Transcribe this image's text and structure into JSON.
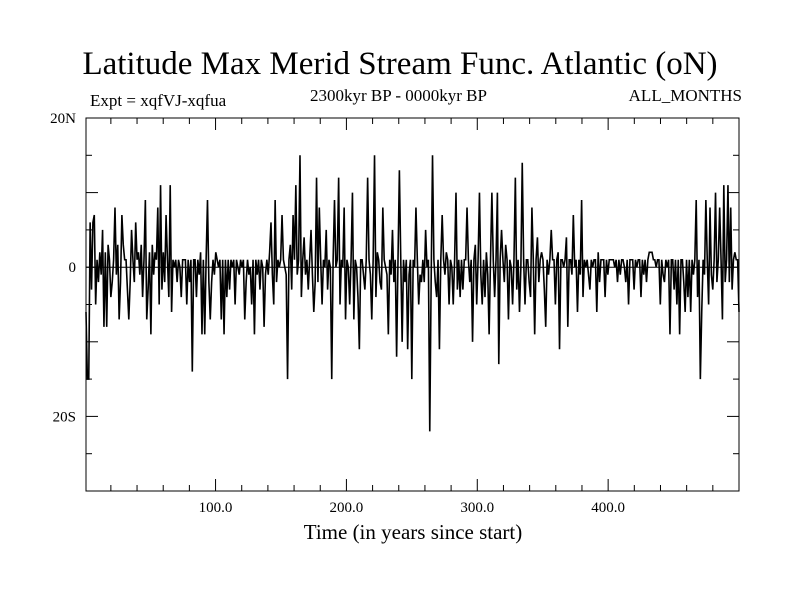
{
  "chart_data": {
    "type": "line",
    "title": "Latitude Max Merid Stream Func. Atlantic (oN)",
    "subtitle_left": "Expt = xqfVJ-xqfua",
    "subtitle_center": "2300kyr BP - 0000kyr BP",
    "subtitle_right": "ALL_MONTHS",
    "xlabel": "Time (in years since start)",
    "ylabel": "",
    "xlim": [
      1,
      500
    ],
    "ylim": [
      -30,
      20
    ],
    "x_ticks": [
      {
        "value": 100,
        "label": "100.0"
      },
      {
        "value": 200,
        "label": "200.0"
      },
      {
        "value": 300,
        "label": "300.0"
      },
      {
        "value": 400,
        "label": "400.0"
      }
    ],
    "y_ticks": [
      {
        "value": 20,
        "label": "20N"
      },
      {
        "value": 0,
        "label": "0"
      },
      {
        "value": -20,
        "label": "20S"
      }
    ],
    "reference_line": 0,
    "grid": false,
    "series": [
      {
        "values": [
          -6,
          -15,
          -15,
          6,
          -3,
          6,
          7,
          -5,
          1,
          -2,
          2,
          -1,
          5,
          -8,
          2,
          -8,
          3,
          1,
          -4,
          -2,
          1,
          8,
          -1,
          3,
          -7,
          -2,
          7,
          3,
          1,
          1,
          -3,
          -7,
          -2,
          5,
          1,
          -2,
          6,
          1,
          2,
          -1,
          3,
          -4,
          1,
          9,
          -7,
          -3,
          2,
          -9,
          3,
          -1,
          2,
          1,
          8,
          -5,
          11,
          -3,
          2,
          -2,
          7,
          1,
          -4,
          11,
          -6,
          1,
          0,
          1,
          -2,
          1,
          0,
          -4,
          1,
          1,
          1,
          -5,
          1,
          -2,
          1,
          -14,
          1,
          1,
          -4,
          1,
          -1,
          2,
          -9,
          1,
          -9,
          1,
          9,
          -2,
          -7,
          -2,
          1,
          -1,
          2,
          1,
          0,
          1,
          -7,
          1,
          -9,
          1,
          -4,
          1,
          -3,
          1,
          0,
          1,
          -5,
          1,
          0,
          -1,
          1,
          0,
          1,
          -7,
          -2,
          1,
          -1,
          0,
          -5,
          1,
          -9,
          1,
          -1,
          1,
          -3,
          1,
          0,
          -8,
          -1,
          1,
          -1,
          2,
          6,
          -1,
          -5,
          9,
          -2,
          1,
          0,
          1,
          7,
          1,
          0,
          -1,
          -15,
          1,
          3,
          -3,
          7,
          1,
          11,
          -1,
          1,
          15,
          -4,
          1,
          4,
          -1,
          1,
          -3,
          1,
          5,
          -1,
          -6,
          -2,
          12,
          -2,
          8,
          1,
          -5,
          1,
          0,
          5,
          -3,
          1,
          0,
          -15,
          1,
          9,
          0,
          1,
          12,
          -5,
          1,
          0,
          8,
          -7,
          1,
          0,
          -5,
          1,
          10,
          -7,
          1,
          0,
          -4,
          -11,
          1,
          1,
          -1,
          -3,
          1,
          12,
          1,
          -1,
          -7,
          1,
          15,
          -4,
          2,
          1,
          -2,
          -3,
          8,
          1,
          0,
          -1,
          -9,
          1,
          -1,
          5,
          -2,
          1,
          -12,
          1,
          13,
          1,
          -10,
          1,
          -2,
          1,
          -11,
          -1,
          1,
          -15,
          1,
          0,
          8,
          1,
          -5,
          -1,
          -2,
          1,
          -2,
          5,
          0,
          1,
          -22,
          -2,
          15,
          1,
          -2,
          -4,
          1,
          -11,
          1,
          7,
          1,
          -1,
          2,
          1,
          -5,
          1,
          0,
          -5,
          1,
          10,
          -3,
          1,
          -4,
          1,
          -3,
          1,
          1,
          8,
          1,
          -2,
          1,
          -10,
          1,
          3,
          -5,
          1,
          10,
          -1,
          -5,
          1,
          -4,
          2,
          -1,
          -9,
          1,
          10,
          1,
          -4,
          1,
          10,
          -13,
          1,
          5,
          1,
          -2,
          3,
          1,
          -7,
          1,
          0,
          -5,
          1,
          12,
          -3,
          1,
          -6,
          0,
          14,
          1,
          -5,
          1,
          1,
          -2,
          -4,
          8,
          1,
          -9,
          1,
          4,
          -2,
          1,
          2,
          1,
          -3,
          -8,
          1,
          -1,
          1,
          5,
          1,
          1,
          -5,
          1,
          2,
          -11,
          1,
          1,
          0,
          1,
          4,
          -8,
          1,
          1,
          -1,
          7,
          0,
          1,
          -6,
          1,
          -1,
          9,
          -4,
          1,
          0,
          1,
          -1,
          -3,
          1,
          0,
          1,
          1,
          -6,
          2,
          -2,
          1,
          1,
          1,
          -4,
          1,
          -1,
          1,
          1,
          1,
          1,
          0,
          1,
          -2,
          1,
          -1,
          1,
          1,
          0,
          -2,
          1,
          -5,
          1,
          1,
          1,
          -3,
          1,
          0,
          1,
          1,
          -4,
          1,
          -1,
          1,
          -2,
          1,
          2,
          2,
          2,
          1,
          1,
          0,
          1,
          1,
          -5,
          1,
          -1,
          -2,
          1,
          0,
          1,
          -9,
          1,
          1,
          -3,
          1,
          -5,
          1,
          -9,
          1,
          1,
          -2,
          -6,
          1,
          -4,
          1,
          -6,
          1,
          -1,
          1,
          9,
          -4,
          1,
          -15,
          -6,
          1,
          -1,
          9,
          1,
          -5,
          8,
          -1,
          -3,
          1,
          10,
          -2,
          1,
          8,
          1,
          -7,
          11,
          -2,
          1,
          11,
          -2,
          8,
          -3,
          1,
          2,
          1,
          1,
          -6
        ]
      }
    ]
  }
}
